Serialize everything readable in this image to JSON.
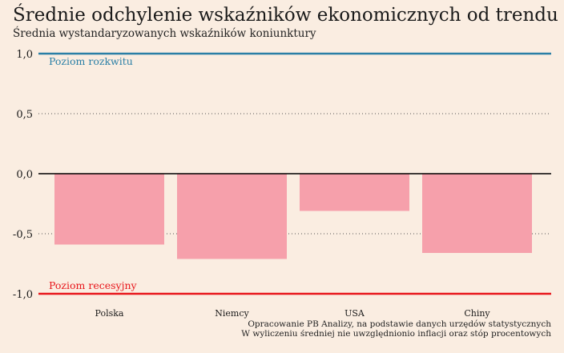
{
  "chart_data": {
    "type": "bar",
    "title": "Średnie odchylenie wskaźników ekonomicznych od trendu",
    "subtitle": "Średnia wystandaryzowanych wskaźników koniunktury",
    "categories": [
      "Polska",
      "Niemcy",
      "USA",
      "Chiny"
    ],
    "values": [
      -0.59,
      -0.71,
      -0.31,
      -0.66
    ],
    "ylim": [
      -1.0,
      1.0
    ],
    "yticks": [
      1.0,
      0.5,
      0.0,
      -0.5,
      -1.0
    ],
    "ytick_labels": [
      "1,0",
      "0,5",
      "0,0",
      "-0,5",
      "-1,0"
    ],
    "reference_lines": [
      {
        "label": "Poziom rozkwitu",
        "value": 1.0,
        "color": "#2a7fa6"
      },
      {
        "label": "Poziom recesyjny",
        "value": -1.0,
        "color": "#e8161b"
      }
    ],
    "bar_color": "#f6a0ab",
    "grid": "dotted"
  },
  "source": {
    "line1": "Opracowanie PB Analizy, na podstawie danych urzędów statystycznych",
    "line2": "W wyliczeniu średniej nie uwzględnionio inflacji oraz stóp procentowych"
  }
}
